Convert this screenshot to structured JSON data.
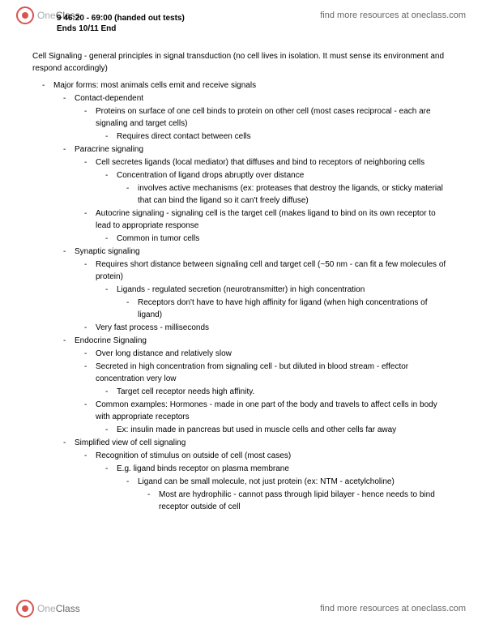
{
  "header": {
    "logo_one": "One",
    "logo_class": "Class",
    "link_text": "find more resources at oneclass.com",
    "note_l1": "9 46:20 - 69:00 (handed out tests)",
    "note_l2": "Ends 10/11 End"
  },
  "doc": {
    "title": "Cell Signaling - general principles in signal transduction (no cell lives in isolation. It must sense its environment and respond accordingly)",
    "major_forms": "Major forms: most animals cells emit and receive signals",
    "contact_dep": "Contact-dependent",
    "contact_dep_1": "Proteins on surface of one cell binds to protein on other cell (most cases reciprocal - each are signaling and target cells)",
    "contact_dep_1a": "Requires direct contact between cells",
    "paracrine": "Paracrine signaling",
    "paracrine_1": "Cell secretes ligands (local mediator) that diffuses and bind to receptors of neighboring cells",
    "paracrine_1a": "Concentration of ligand drops abruptly over distance",
    "paracrine_1a1": "involves active mechanisms (ex: proteases that destroy the ligands, or sticky material that can bind the ligand so it can't freely diffuse)",
    "paracrine_2": "Autocrine signaling - signaling cell is the target cell (makes ligand to bind on its own receptor to lead to appropriate response",
    "paracrine_2a": "Common in tumor cells",
    "synaptic": "Synaptic signaling",
    "synaptic_1": "Requires short distance between signaling cell and target cell (~50 nm - can fit a few molecules of protein)",
    "synaptic_1a": "Ligands  - regulated secretion (neurotransmitter) in high concentration",
    "synaptic_1a1": "Receptors don't have to have high affinity for ligand (when high concentrations of ligand)",
    "synaptic_2": "Very fast process - milliseconds",
    "endocrine": "Endocrine Signaling",
    "endocrine_1": "Over long distance and relatively slow",
    "endocrine_2": "Secreted in high concentration from signaling cell - but diluted in blood stream - effector concentration very low",
    "endocrine_2a": "Target cell receptor needs high affinity.",
    "endocrine_3": "Common examples: Hormones - made in one part of the body and travels to affect cells in body with appropriate receptors",
    "endocrine_3a": "Ex: insulin made in pancreas but used in muscle cells and other cells far away",
    "simplified": "Simplified view of cell signaling",
    "simplified_1": "Recognition of stimulus on outside of cell (most cases)",
    "simplified_1a": "E.g. ligand binds receptor on plasma membrane",
    "simplified_1a1": "Ligand can be small molecule, not just protein (ex: NTM - acetylcholine)",
    "simplified_1a1a": "Most are hydrophilic - cannot pass through lipid bilayer - hence needs to bind receptor outside of cell"
  }
}
